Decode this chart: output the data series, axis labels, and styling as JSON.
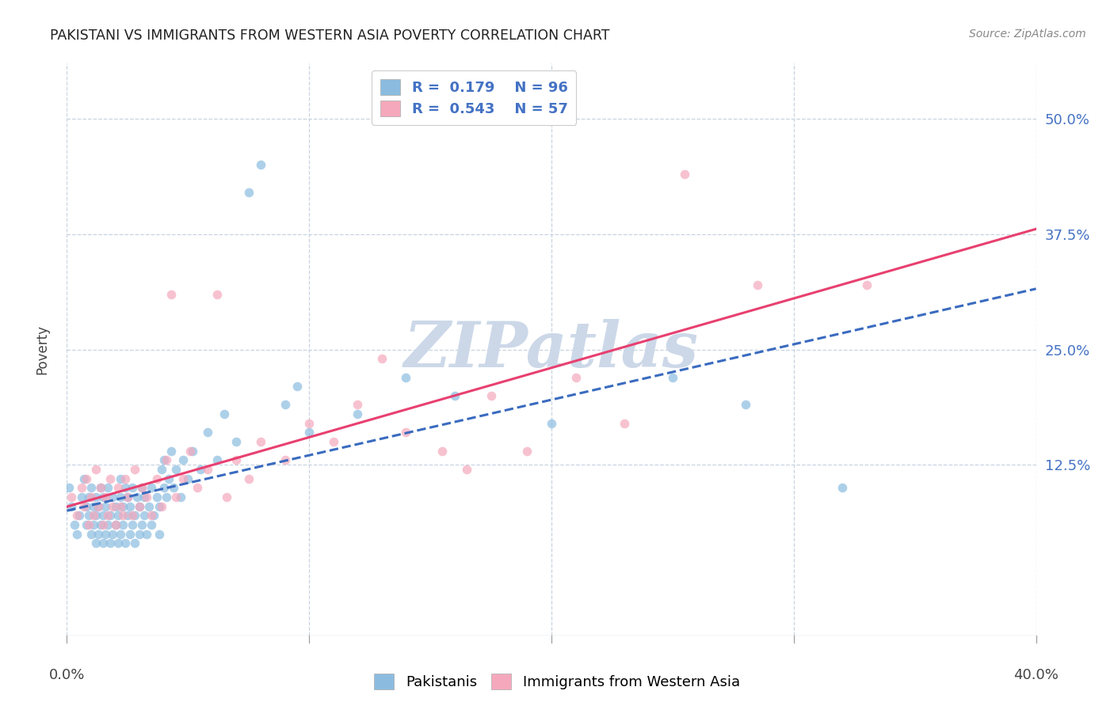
{
  "title": "PAKISTANI VS IMMIGRANTS FROM WESTERN ASIA POVERTY CORRELATION CHART",
  "source": "Source: ZipAtlas.com",
  "ylabel": "Poverty",
  "ytick_labels": [
    "12.5%",
    "25.0%",
    "37.5%",
    "50.0%"
  ],
  "ytick_values": [
    0.125,
    0.25,
    0.375,
    0.5
  ],
  "xmin": 0.0,
  "xmax": 0.4,
  "ymin": -0.06,
  "ymax": 0.56,
  "R_pakistani": 0.179,
  "N_pakistani": 96,
  "R_western_asia": 0.543,
  "N_western_asia": 57,
  "color_pakistani": "#8bbce0",
  "color_western_asia": "#f5a8bc",
  "color_trendline_pakistani": "#3a6bbf",
  "color_trendline_western_asia": "#e84070",
  "watermark_color": "#ccd8e8",
  "pakistani_x": [
    0.001,
    0.002,
    0.003,
    0.004,
    0.005,
    0.006,
    0.007,
    0.008,
    0.008,
    0.009,
    0.009,
    0.01,
    0.01,
    0.011,
    0.011,
    0.012,
    0.012,
    0.012,
    0.013,
    0.013,
    0.014,
    0.014,
    0.015,
    0.015,
    0.015,
    0.016,
    0.016,
    0.017,
    0.017,
    0.018,
    0.018,
    0.019,
    0.019,
    0.02,
    0.02,
    0.021,
    0.021,
    0.022,
    0.022,
    0.022,
    0.023,
    0.023,
    0.024,
    0.024,
    0.025,
    0.025,
    0.026,
    0.026,
    0.027,
    0.027,
    0.028,
    0.028,
    0.029,
    0.03,
    0.03,
    0.031,
    0.031,
    0.032,
    0.032,
    0.033,
    0.034,
    0.035,
    0.035,
    0.036,
    0.037,
    0.038,
    0.038,
    0.039,
    0.04,
    0.04,
    0.041,
    0.042,
    0.043,
    0.044,
    0.045,
    0.047,
    0.048,
    0.05,
    0.052,
    0.055,
    0.058,
    0.062,
    0.065,
    0.07,
    0.075,
    0.08,
    0.09,
    0.095,
    0.1,
    0.12,
    0.14,
    0.16,
    0.2,
    0.25,
    0.28,
    0.32
  ],
  "pakistani_y": [
    0.1,
    0.08,
    0.06,
    0.05,
    0.07,
    0.09,
    0.11,
    0.06,
    0.08,
    0.07,
    0.09,
    0.05,
    0.1,
    0.06,
    0.08,
    0.04,
    0.07,
    0.09,
    0.05,
    0.08,
    0.06,
    0.1,
    0.04,
    0.07,
    0.09,
    0.05,
    0.08,
    0.06,
    0.1,
    0.04,
    0.07,
    0.05,
    0.09,
    0.06,
    0.08,
    0.04,
    0.07,
    0.05,
    0.09,
    0.11,
    0.06,
    0.08,
    0.04,
    0.1,
    0.07,
    0.09,
    0.05,
    0.08,
    0.06,
    0.1,
    0.04,
    0.07,
    0.09,
    0.05,
    0.08,
    0.06,
    0.1,
    0.07,
    0.09,
    0.05,
    0.08,
    0.06,
    0.1,
    0.07,
    0.09,
    0.05,
    0.08,
    0.12,
    0.1,
    0.13,
    0.09,
    0.11,
    0.14,
    0.1,
    0.12,
    0.09,
    0.13,
    0.11,
    0.14,
    0.12,
    0.16,
    0.13,
    0.18,
    0.15,
    0.42,
    0.45,
    0.19,
    0.21,
    0.16,
    0.18,
    0.22,
    0.2,
    0.17,
    0.22,
    0.19,
    0.1
  ],
  "western_asia_x": [
    0.002,
    0.004,
    0.006,
    0.007,
    0.008,
    0.009,
    0.01,
    0.011,
    0.012,
    0.013,
    0.014,
    0.015,
    0.016,
    0.017,
    0.018,
    0.019,
    0.02,
    0.021,
    0.022,
    0.023,
    0.024,
    0.025,
    0.027,
    0.028,
    0.03,
    0.031,
    0.033,
    0.035,
    0.037,
    0.039,
    0.041,
    0.043,
    0.045,
    0.048,
    0.051,
    0.054,
    0.058,
    0.062,
    0.066,
    0.07,
    0.075,
    0.08,
    0.09,
    0.1,
    0.11,
    0.12,
    0.13,
    0.14,
    0.155,
    0.165,
    0.175,
    0.19,
    0.21,
    0.23,
    0.255,
    0.285,
    0.33
  ],
  "western_asia_y": [
    0.09,
    0.07,
    0.1,
    0.08,
    0.11,
    0.06,
    0.09,
    0.07,
    0.12,
    0.08,
    0.1,
    0.06,
    0.09,
    0.07,
    0.11,
    0.08,
    0.06,
    0.1,
    0.08,
    0.07,
    0.11,
    0.09,
    0.07,
    0.12,
    0.08,
    0.1,
    0.09,
    0.07,
    0.11,
    0.08,
    0.13,
    0.31,
    0.09,
    0.11,
    0.14,
    0.1,
    0.12,
    0.31,
    0.09,
    0.13,
    0.11,
    0.15,
    0.13,
    0.17,
    0.15,
    0.19,
    0.24,
    0.16,
    0.14,
    0.12,
    0.2,
    0.14,
    0.22,
    0.17,
    0.44,
    0.32,
    0.32
  ]
}
